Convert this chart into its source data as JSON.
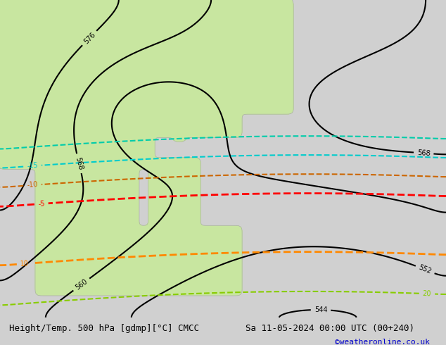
{
  "title_left": "Height/Temp. 500 hPa [gdmp][°C] CMCC",
  "title_right": "Sa 11-05-2024 00:00 UTC (00+240)",
  "watermark": "©weatheronline.co.uk",
  "background_color": "#d8d8d8",
  "land_color_main": "#c8e6a0",
  "land_color_alt": "#b8d890",
  "ocean_color": "#d8d8d8",
  "border_color": "#aaaaaa",
  "text_color": "#000000",
  "footer_text_color": "#0000cc",
  "fig_width": 6.34,
  "fig_height": 4.9,
  "dpi": 100
}
